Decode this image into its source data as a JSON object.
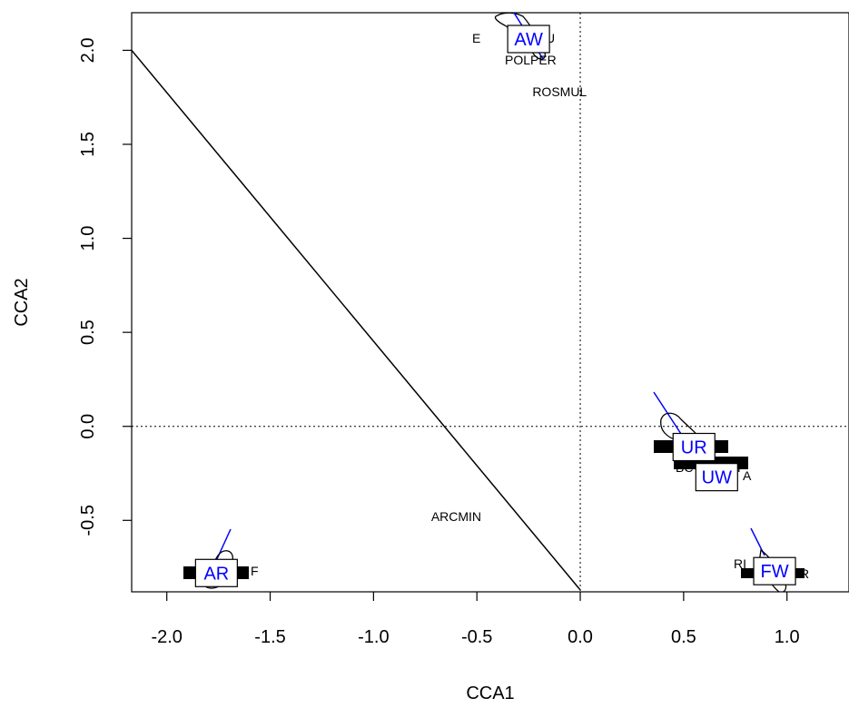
{
  "chart_data": {
    "type": "scatter",
    "xlabel": "CCA1",
    "ylabel": "CCA2",
    "xlim": [
      -2.17,
      1.3
    ],
    "ylim": [
      -0.88,
      2.2
    ],
    "x_ticks": [
      {
        "value": -2.0,
        "label": "-2.0"
      },
      {
        "value": -1.5,
        "label": "-1.5"
      },
      {
        "value": -1.0,
        "label": "-1.0"
      },
      {
        "value": -0.5,
        "label": "-0.5"
      },
      {
        "value": 0.0,
        "label": "0.0"
      },
      {
        "value": 0.5,
        "label": "0.5"
      },
      {
        "value": 1.0,
        "label": "1.0"
      }
    ],
    "y_ticks": [
      {
        "value": -0.5,
        "label": "-0.5"
      },
      {
        "value": 0.0,
        "label": "0.0"
      },
      {
        "value": 0.5,
        "label": "0.5"
      },
      {
        "value": 1.0,
        "label": "1.0"
      },
      {
        "value": 1.5,
        "label": "1.5"
      },
      {
        "value": 2.0,
        "label": "2.0"
      }
    ],
    "reference_lines": {
      "x": 0,
      "y": 0,
      "style": "dotted"
    },
    "diagonal_line": {
      "from": [
        -2.17,
        2.0
      ],
      "to": [
        0.0,
        -0.87
      ]
    },
    "species_labels": [
      {
        "text": "POLPER",
        "x": -0.24,
        "y": 1.95
      },
      {
        "text": "ROSMUL",
        "x": -0.1,
        "y": 1.78
      },
      {
        "text": "ARCMIN",
        "x": -0.6,
        "y": -0.48
      },
      {
        "text": "AW",
        "x": -0.25,
        "y": 2.06,
        "boxed": true,
        "color": "#0000ff"
      },
      {
        "text": "UR",
        "x": 0.55,
        "y": -0.11,
        "boxed": true,
        "color": "#0000ff"
      },
      {
        "text": "UW",
        "x": 0.66,
        "y": -0.27,
        "boxed": true,
        "color": "#0000ff"
      },
      {
        "text": "AR",
        "x": -1.76,
        "y": -0.78,
        "boxed": true,
        "color": "#0000ff"
      },
      {
        "text": "FW",
        "x": 0.94,
        "y": -0.77,
        "boxed": true,
        "color": "#0000ff"
      }
    ],
    "colors": {
      "axis": "#000000",
      "site_labels": "#0000ff",
      "vectors": "#0000ff"
    }
  }
}
